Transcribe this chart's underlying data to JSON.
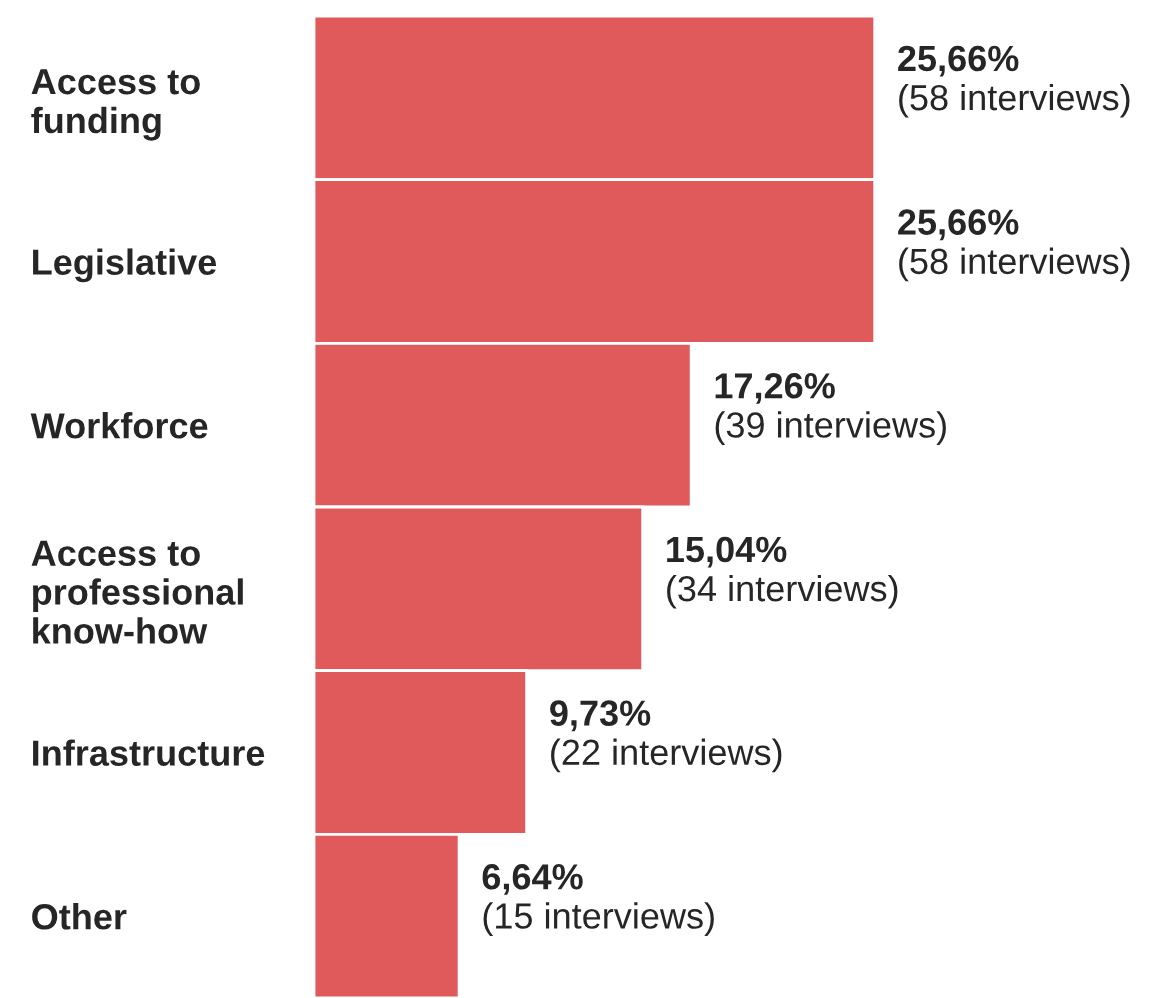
{
  "chart_data": {
    "type": "bar",
    "orientation": "horizontal",
    "categories": [
      "Access to\nfunding",
      "Legislative",
      "Workforce",
      "Access to\nprofessional\nknow-how",
      "Infrastructure",
      "Other"
    ],
    "values": [
      25.66,
      25.66,
      17.26,
      15.04,
      9.73,
      6.64
    ],
    "value_labels": [
      "25,66%\n(58 interviews)",
      "25,66%\n(58 interviews)",
      "17,26%\n(39 interviews)",
      "15,04%\n(34 interviews)",
      "9,73%\n(22 interviews)",
      "6,64%\n(15 interviews)"
    ],
    "color": "#e05a5b",
    "grid": false,
    "legend": false
  }
}
